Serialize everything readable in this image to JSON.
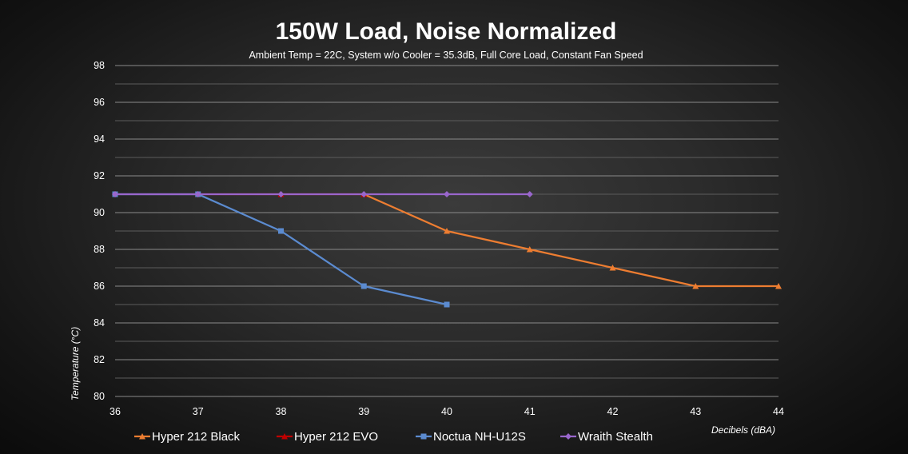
{
  "chart_data": {
    "type": "line",
    "title": "150W Load, Noise Normalized",
    "subtitle": "Ambient Temp = 22C, System w/o Cooler = 35.3dB, Full Core Load, Constant Fan Speed",
    "xlabel": "Decibels (dBA)",
    "ylabel": "Temperature (°C)",
    "xlim": [
      36,
      44
    ],
    "ylim": [
      80,
      98
    ],
    "x_ticks": [
      "36",
      "37",
      "38",
      "39",
      "40",
      "41",
      "42",
      "43",
      "44"
    ],
    "y_ticks": [
      "80",
      "82",
      "84",
      "86",
      "88",
      "90",
      "92",
      "94",
      "96",
      "98"
    ],
    "grid": true,
    "legend_position": "bottom",
    "series": [
      {
        "name": "Hyper 212 Black",
        "color": "#ED7D31",
        "marker": "triangle",
        "points": [
          [
            39,
            91
          ],
          [
            40,
            89
          ],
          [
            41,
            88
          ],
          [
            42,
            87
          ],
          [
            43,
            86
          ],
          [
            44,
            86
          ]
        ]
      },
      {
        "name": "Hyper 212 EVO",
        "color": "#C00000",
        "marker": "triangle",
        "points": [
          [
            37,
            91
          ],
          [
            38,
            91
          ],
          [
            39,
            91
          ]
        ]
      },
      {
        "name": "Noctua NH-U12S",
        "color": "#5B8BD0",
        "marker": "square",
        "points": [
          [
            36,
            91
          ],
          [
            37,
            91
          ],
          [
            38,
            89
          ],
          [
            39,
            86
          ],
          [
            40,
            85
          ]
        ]
      },
      {
        "name": "Wraith Stealth",
        "color": "#9966CC",
        "marker": "diamond",
        "points": [
          [
            36,
            91
          ],
          [
            37,
            91
          ],
          [
            38,
            91
          ],
          [
            39,
            91
          ],
          [
            40,
            91
          ],
          [
            41,
            91
          ]
        ]
      }
    ]
  }
}
